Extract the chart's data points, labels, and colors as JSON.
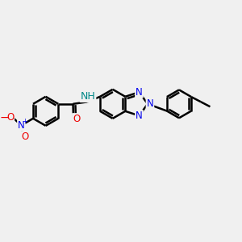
{
  "bg_color": "#f0f0f0",
  "bond_color": "#000000",
  "bond_width": 1.8,
  "atom_colors": {
    "N": "#0000ee",
    "O": "#ee0000",
    "NH": "#008888",
    "C": "#000000"
  },
  "font_size_atom": 8.5,
  "fig_bg": "#f0f0f0"
}
